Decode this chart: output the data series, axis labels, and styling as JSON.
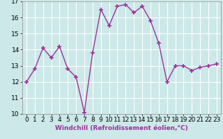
{
  "x": [
    0,
    1,
    2,
    3,
    4,
    5,
    6,
    7,
    8,
    9,
    10,
    11,
    12,
    13,
    14,
    15,
    16,
    17,
    18,
    19,
    20,
    21,
    22,
    23
  ],
  "y": [
    12.0,
    12.8,
    14.1,
    13.5,
    14.2,
    12.8,
    12.3,
    10.1,
    13.8,
    16.5,
    15.5,
    16.7,
    16.8,
    16.3,
    16.7,
    15.8,
    14.4,
    12.0,
    13.0,
    13.0,
    12.7,
    12.9,
    13.0,
    13.1
  ],
  "line_color": "#993399",
  "marker_color": "#993399",
  "bg_color": "#cce8e8",
  "grid_color": "#b0d8d8",
  "xlabel": "Windchill (Refroidissement éolien,°C)",
  "xlim": [
    -0.5,
    23.5
  ],
  "ylim": [
    10,
    17
  ],
  "yticks": [
    10,
    11,
    12,
    13,
    14,
    15,
    16,
    17
  ],
  "xticks": [
    0,
    1,
    2,
    3,
    4,
    5,
    6,
    7,
    8,
    9,
    10,
    11,
    12,
    13,
    14,
    15,
    16,
    17,
    18,
    19,
    20,
    21,
    22,
    23
  ],
  "xlabel_fontsize": 6.5,
  "tick_fontsize": 6.5,
  "marker_size": 4,
  "line_width": 1.0
}
